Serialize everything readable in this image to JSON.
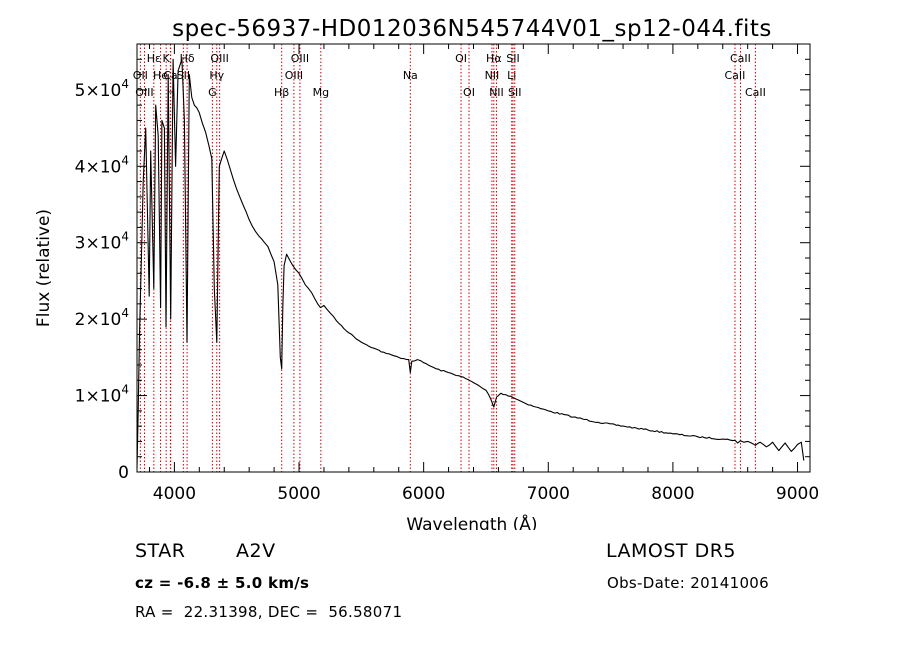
{
  "chart_data": {
    "type": "line",
    "title": "spec-56937-HD012036N545744V01_sp12-044.fits",
    "xlabel": "Wavelength (Å)",
    "ylabel": "Flux (relative)",
    "xlim": [
      3700,
      9100
    ],
    "ylim": [
      0,
      56000
    ],
    "xticks": [
      4000,
      5000,
      6000,
      7000,
      8000,
      9000
    ],
    "yticks": [
      {
        "value": 0,
        "mantissa": "0",
        "exp": ""
      },
      {
        "value": 10000,
        "mantissa": "1×10",
        "exp": "4"
      },
      {
        "value": 20000,
        "mantissa": "2×10",
        "exp": "4"
      },
      {
        "value": 30000,
        "mantissa": "3×10",
        "exp": "4"
      },
      {
        "value": 40000,
        "mantissa": "4×10",
        "exp": "4"
      },
      {
        "value": 50000,
        "mantissa": "5×10",
        "exp": "4"
      }
    ],
    "grid": false,
    "spectrum": {
      "x": [
        3700,
        3710,
        3720,
        3735,
        3750,
        3770,
        3798,
        3810,
        3835,
        3850,
        3870,
        3889,
        3900,
        3920,
        3933,
        3950,
        3970,
        3990,
        4010,
        4030,
        4060,
        4080,
        4101,
        4120,
        4140,
        4160,
        4200,
        4250,
        4300,
        4320,
        4340,
        4360,
        4380,
        4400,
        4450,
        4500,
        4550,
        4600,
        4650,
        4700,
        4750,
        4800,
        4830,
        4850,
        4861,
        4870,
        4880,
        4900,
        4950,
        5000,
        5050,
        5100,
        5150,
        5172,
        5200,
        5250,
        5300,
        5400,
        5500,
        5600,
        5700,
        5800,
        5880,
        5893,
        5905,
        5950,
        6000,
        6100,
        6200,
        6300,
        6400,
        6500,
        6540,
        6563,
        6585,
        6620,
        6700,
        6800,
        6900,
        7000,
        7200,
        7400,
        7600,
        7800,
        8000,
        8200,
        8400,
        8498,
        8520,
        8542,
        8570,
        8600,
        8640,
        8662,
        8700,
        8750,
        8800,
        8850,
        8900,
        8950,
        9000,
        9030,
        9050
      ],
      "y": [
        500,
        8000,
        18000,
        28000,
        38000,
        45000,
        23000,
        42000,
        24000,
        48000,
        44000,
        21500,
        46000,
        45000,
        19000,
        52000,
        20000,
        54000,
        40000,
        52500,
        54000,
        46000,
        17000,
        52000,
        49000,
        48000,
        47000,
        44500,
        41000,
        24000,
        17000,
        40000,
        41000,
        42000,
        39500,
        37000,
        35000,
        33000,
        31500,
        30500,
        29500,
        27500,
        24500,
        15000,
        13500,
        21500,
        27000,
        28500,
        27000,
        26000,
        24500,
        23500,
        22000,
        21500,
        21800,
        20800,
        19800,
        18200,
        17000,
        16200,
        15500,
        15000,
        14700,
        13000,
        14500,
        14700,
        14300,
        13500,
        13000,
        12500,
        11700,
        10700,
        9500,
        8500,
        9800,
        10300,
        9900,
        9100,
        8500,
        8000,
        7200,
        6500,
        6000,
        5500,
        5000,
        4600,
        4300,
        4150,
        3800,
        4100,
        3900,
        4000,
        3700,
        3500,
        3900,
        3300,
        3900,
        2800,
        3800,
        2700,
        3600,
        3900,
        1500
      ]
    },
    "lines": [
      {
        "label": "Hε",
        "x": 3835,
        "row": 0
      },
      {
        "label": "K",
        "x": 3934,
        "row": 0
      },
      {
        "label": "Hδ",
        "x": 4102,
        "row": 0
      },
      {
        "label": "OIII",
        "x": 4363,
        "row": 0
      },
      {
        "label": "OIII",
        "x": 5007,
        "row": 0
      },
      {
        "label": "OI",
        "x": 6300,
        "row": 0
      },
      {
        "label": "Hα",
        "x": 6563,
        "row": 0
      },
      {
        "label": "SII",
        "x": 6717,
        "row": 0
      },
      {
        "label": "CaII",
        "x": 8542,
        "row": 0
      },
      {
        "label": "OII",
        "x": 3727,
        "row": 1
      },
      {
        "label": "He",
        "x": 3889,
        "row": 1
      },
      {
        "label": "Ca",
        "x": 3968,
        "row": 1
      },
      {
        "label": "SII",
        "x": 4072,
        "row": 1
      },
      {
        "label": "Hγ",
        "x": 4340,
        "row": 1
      },
      {
        "label": "OIII",
        "x": 4959,
        "row": 1
      },
      {
        "label": "Na",
        "x": 5893,
        "row": 1
      },
      {
        "label": "NII",
        "x": 6548,
        "row": 1
      },
      {
        "label": "Li",
        "x": 6707,
        "row": 1
      },
      {
        "label": "CaII",
        "x": 8498,
        "row": 1
      },
      {
        "label": "OIII",
        "x": 3760,
        "row": 2
      },
      {
        "label": "H",
        "x": 3970,
        "row": 2
      },
      {
        "label": "G",
        "x": 4305,
        "row": 2
      },
      {
        "label": "Hβ",
        "x": 4861,
        "row": 2
      },
      {
        "label": "Mg",
        "x": 5175,
        "row": 2
      },
      {
        "label": "OI",
        "x": 6364,
        "row": 2
      },
      {
        "label": "NII",
        "x": 6584,
        "row": 2
      },
      {
        "label": "SII",
        "x": 6731,
        "row": 2
      },
      {
        "label": "CaII",
        "x": 8662,
        "row": 2
      }
    ],
    "line_color": "#cc0000",
    "spectrum_color": "#000000"
  },
  "info": {
    "object_class": "STAR",
    "subclass": "A2V",
    "survey": "LAMOST DR5",
    "cz_text": "cz = -6.8 ± 5.0 km/s",
    "obs_date": "Obs-Date: 20141006",
    "radec": "RA =  22.31398, DEC =  56.58071"
  }
}
